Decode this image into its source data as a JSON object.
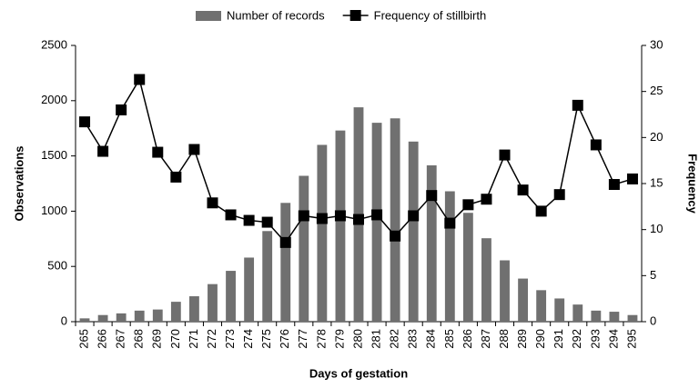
{
  "chart_data": {
    "type": "bar-line",
    "xlabel": "Days of gestation",
    "ylabel": "Observations",
    "y2label": "Frequency",
    "categories": [
      "265",
      "266",
      "267",
      "268",
      "269",
      "270",
      "271",
      "272",
      "273",
      "274",
      "275",
      "276",
      "277",
      "278",
      "279",
      "280",
      "281",
      "282",
      "283",
      "284",
      "285",
      "286",
      "287",
      "288",
      "289",
      "290",
      "291",
      "292",
      "293",
      "294",
      "295"
    ],
    "series": [
      {
        "name": "Number of records",
        "type": "bar",
        "color": "#707070",
        "values": [
          30,
          60,
          75,
          100,
          110,
          180,
          230,
          340,
          460,
          580,
          820,
          1075,
          1320,
          1600,
          1730,
          1940,
          1800,
          1840,
          1630,
          1415,
          1180,
          985,
          755,
          555,
          390,
          285,
          210,
          155,
          100,
          90,
          60
        ]
      },
      {
        "name": "Frequency of stillbirth",
        "type": "line",
        "axis": "y2",
        "color": "#000000",
        "values": [
          21.7,
          18.5,
          23,
          26.3,
          18.4,
          15.7,
          18.7,
          12.9,
          11.6,
          11.0,
          10.8,
          8.6,
          11.5,
          11.2,
          11.5,
          11.1,
          11.6,
          9.3,
          11.5,
          13.7,
          10.7,
          12.7,
          13.3,
          18.1,
          14.3,
          12.0,
          13.8,
          23.5,
          19.2,
          14.9,
          15.5
        ]
      }
    ],
    "ylim": [
      0,
      2500
    ],
    "yticks": [
      0,
      500,
      1000,
      1500,
      2000,
      2500
    ],
    "y2lim": [
      0,
      30
    ],
    "y2ticks": [
      0,
      5,
      10,
      15,
      20,
      25,
      30
    ],
    "legend": "top",
    "grid": false
  }
}
